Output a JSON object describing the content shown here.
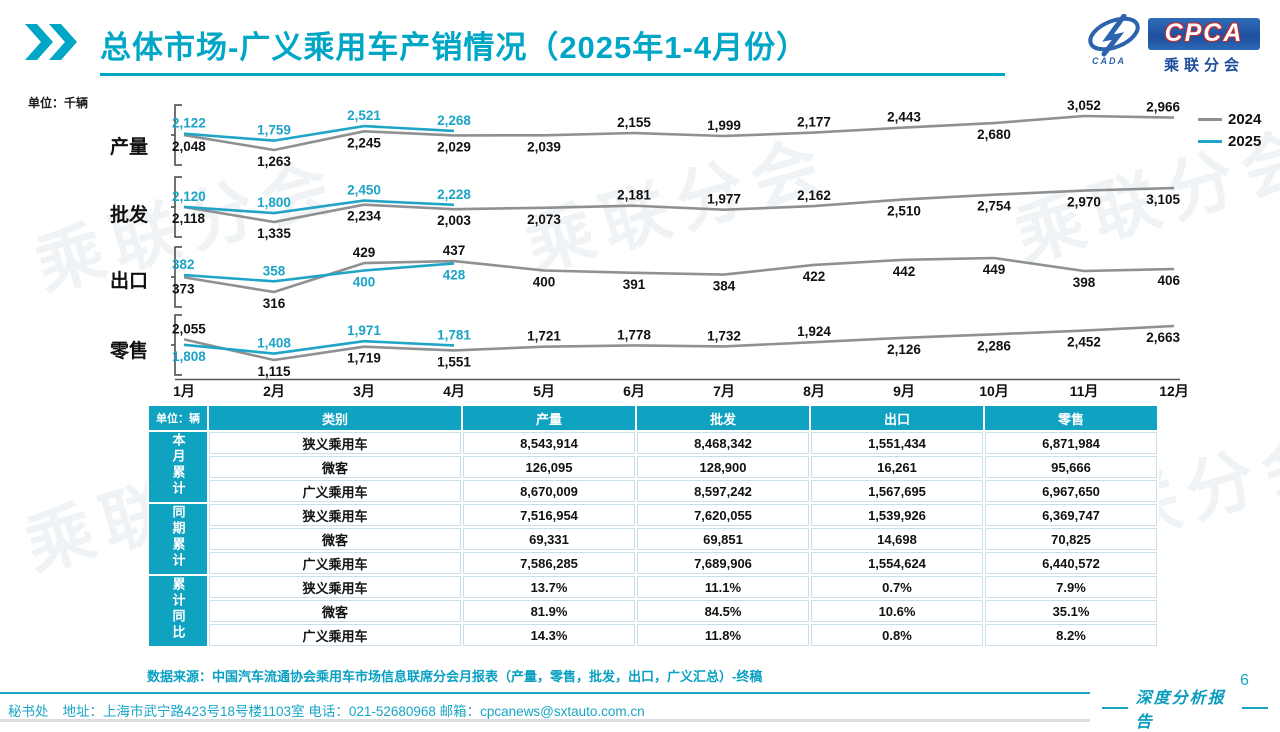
{
  "header": {
    "title": "总体市场-广义乘用车产销情况（2025年1-4月份）",
    "logo": {
      "cpca": "CPCA",
      "cada": "CADA",
      "subtitle": "乘联分会"
    }
  },
  "charts_unit_label": "单位：千辆",
  "watermark_text": "乘联分会",
  "legend": {
    "position": "top-right",
    "entries": [
      {
        "label": "2024",
        "color": "#8e9092"
      },
      {
        "label": "2025",
        "color": "#21a5c6"
      }
    ]
  },
  "chart_data": [
    {
      "type": "line",
      "title": "产量",
      "categories": [
        "1月",
        "2月",
        "3月",
        "4月",
        "5月",
        "6月",
        "7月",
        "8月",
        "9月",
        "10月",
        "11月",
        "12月"
      ],
      "ylim": [
        1263,
        3052
      ],
      "series": [
        {
          "name": "2024",
          "color": "#8e9092",
          "label_color": "#111111",
          "values": [
            2048,
            1263,
            2245,
            2029,
            2039,
            2155,
            1999,
            2177,
            2443,
            2680,
            3052,
            2966
          ],
          "label_pos": [
            "d",
            "d",
            "d",
            "d",
            "d",
            "u",
            "u",
            "u",
            "u",
            "d",
            "u",
            "u"
          ]
        },
        {
          "name": "2025",
          "color": "#21a5c6",
          "label_color": "#1ba4c6",
          "values": [
            2122,
            1759,
            2521,
            2268
          ],
          "label_pos": [
            "u",
            "u",
            "u",
            "u"
          ]
        }
      ]
    },
    {
      "type": "line",
      "title": "批发",
      "categories": [
        "1月",
        "2月",
        "3月",
        "4月",
        "5月",
        "6月",
        "7月",
        "8月",
        "9月",
        "10月",
        "11月",
        "12月"
      ],
      "ylim": [
        1335,
        3105
      ],
      "series": [
        {
          "name": "2024",
          "color": "#8e9092",
          "label_color": "#111111",
          "values": [
            2118,
            1335,
            2234,
            2003,
            2073,
            2181,
            1977,
            2162,
            2510,
            2754,
            2970,
            3105
          ],
          "label_pos": [
            "d",
            "d",
            "d",
            "d",
            "d",
            "u",
            "u",
            "u",
            "d",
            "d",
            "d",
            "d"
          ]
        },
        {
          "name": "2025",
          "color": "#21a5c6",
          "label_color": "#1ba4c6",
          "values": [
            2120,
            1800,
            2450,
            2228
          ],
          "label_pos": [
            "u",
            "u",
            "u",
            "u"
          ]
        }
      ]
    },
    {
      "type": "line",
      "title": "出口",
      "categories": [
        "1月",
        "2月",
        "3月",
        "4月",
        "5月",
        "6月",
        "7月",
        "8月",
        "9月",
        "10月",
        "11月",
        "12月"
      ],
      "ylim": [
        316,
        449
      ],
      "series": [
        {
          "name": "2024",
          "color": "#8e9092",
          "label_color": "#111111",
          "values": [
            373,
            316,
            429,
            437,
            400,
            391,
            384,
            422,
            442,
            449,
            398,
            406
          ],
          "label_pos": [
            "d",
            "d",
            "u",
            "u",
            "d",
            "d",
            "d",
            "d",
            "d",
            "d",
            "d",
            "d"
          ]
        },
        {
          "name": "2025",
          "color": "#21a5c6",
          "label_color": "#1ba4c6",
          "values": [
            382,
            358,
            400,
            428
          ],
          "label_pos": [
            "u",
            "u",
            "d",
            "d"
          ]
        }
      ]
    },
    {
      "type": "line",
      "title": "零售",
      "categories": [
        "1月",
        "2月",
        "3月",
        "4月",
        "5月",
        "6月",
        "7月",
        "8月",
        "9月",
        "10月",
        "11月",
        "12月"
      ],
      "ylim": [
        1115,
        2663
      ],
      "baseline": true,
      "series": [
        {
          "name": "2024",
          "color": "#8e9092",
          "label_color": "#111111",
          "values": [
            2055,
            1115,
            1719,
            1551,
            1721,
            1778,
            1732,
            1924,
            2126,
            2286,
            2452,
            2663
          ],
          "label_pos": [
            "u",
            "d",
            "d",
            "d",
            "u",
            "u",
            "u",
            "u",
            "d",
            "d",
            "d",
            "d"
          ]
        },
        {
          "name": "2025",
          "color": "#21a5c6",
          "label_color": "#1ba4c6",
          "values": [
            1808,
            1408,
            1971,
            1781
          ],
          "label_pos": [
            "d",
            "u",
            "u",
            "u"
          ]
        }
      ]
    }
  ],
  "table": {
    "unit": "单位：辆",
    "columns": [
      "类别",
      "产量",
      "批发",
      "出口",
      "零售"
    ],
    "groups": [
      {
        "label": "本月累计",
        "rows": [
          [
            "狭义乘用车",
            "8,543,914",
            "8,468,342",
            "1,551,434",
            "6,871,984"
          ],
          [
            "微客",
            "126,095",
            "128,900",
            "16,261",
            "95,666"
          ],
          [
            "广义乘用车",
            "8,670,009",
            "8,597,242",
            "1,567,695",
            "6,967,650"
          ]
        ]
      },
      {
        "label": "同期累计",
        "rows": [
          [
            "狭义乘用车",
            "7,516,954",
            "7,620,055",
            "1,539,926",
            "6,369,747"
          ],
          [
            "微客",
            "69,331",
            "69,851",
            "14,698",
            "70,825"
          ],
          [
            "广义乘用车",
            "7,586,285",
            "7,689,906",
            "1,554,624",
            "6,440,572"
          ]
        ]
      },
      {
        "label": "累计同比",
        "rows": [
          [
            "狭义乘用车",
            "13.7%",
            "11.1%",
            "0.7%",
            "7.9%"
          ],
          [
            "微客",
            "81.9%",
            "84.5%",
            "10.6%",
            "35.1%"
          ],
          [
            "广义乘用车",
            "14.3%",
            "11.8%",
            "0.8%",
            "8.2%"
          ]
        ]
      }
    ]
  },
  "source_note": "数据来源：中国汽车流通协会乘用车市场信息联席分会月报表（产量，零售，批发，出口，广义汇总）-终稿",
  "footer": {
    "secretariat": "秘书处",
    "contact": "地址：上海市武宁路423号18号楼1103室 电话：021-52680968  邮箱：cpcanews@sxtauto.com.cn",
    "report_type": "深度分析报告",
    "page_number": "6"
  },
  "colors": {
    "accent": "#00a6c6",
    "line_2024": "#8e9092",
    "line_2025": "#21a5c6",
    "table_header_bg": "#0fa2c1",
    "logo_blue": "#1d4f9e"
  }
}
